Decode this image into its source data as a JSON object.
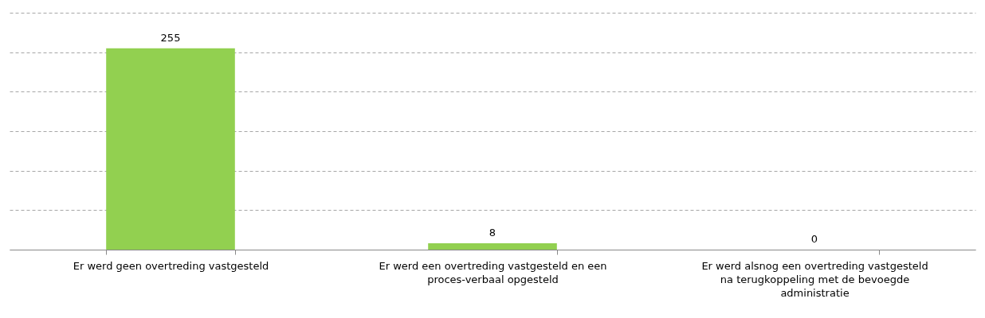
{
  "chart_data": {
    "type": "bar",
    "categories": [
      "Er werd geen overtreding vastgesteld",
      "Er werd een overtreding vastgesteld en een proces-verbaal opgesteld",
      "Er werd alsnog een overtreding vastgesteld na terugkoppeling met de bevoegde administratie"
    ],
    "values": [
      255,
      8,
      0
    ],
    "color": "#92d050",
    "data_labels": true,
    "grid": "y",
    "ylim": [
      0,
      300
    ],
    "yticks": [
      {
        "value": 0,
        "label": null
      },
      {
        "value": 50,
        "label": null
      },
      {
        "value": 100,
        "label": null
      },
      {
        "value": 150,
        "label": null
      },
      {
        "value": 200,
        "label": null
      },
      {
        "value": 250,
        "label": null
      },
      {
        "value": 300,
        "label": null
      }
    ],
    "tick_labels": "x"
  }
}
